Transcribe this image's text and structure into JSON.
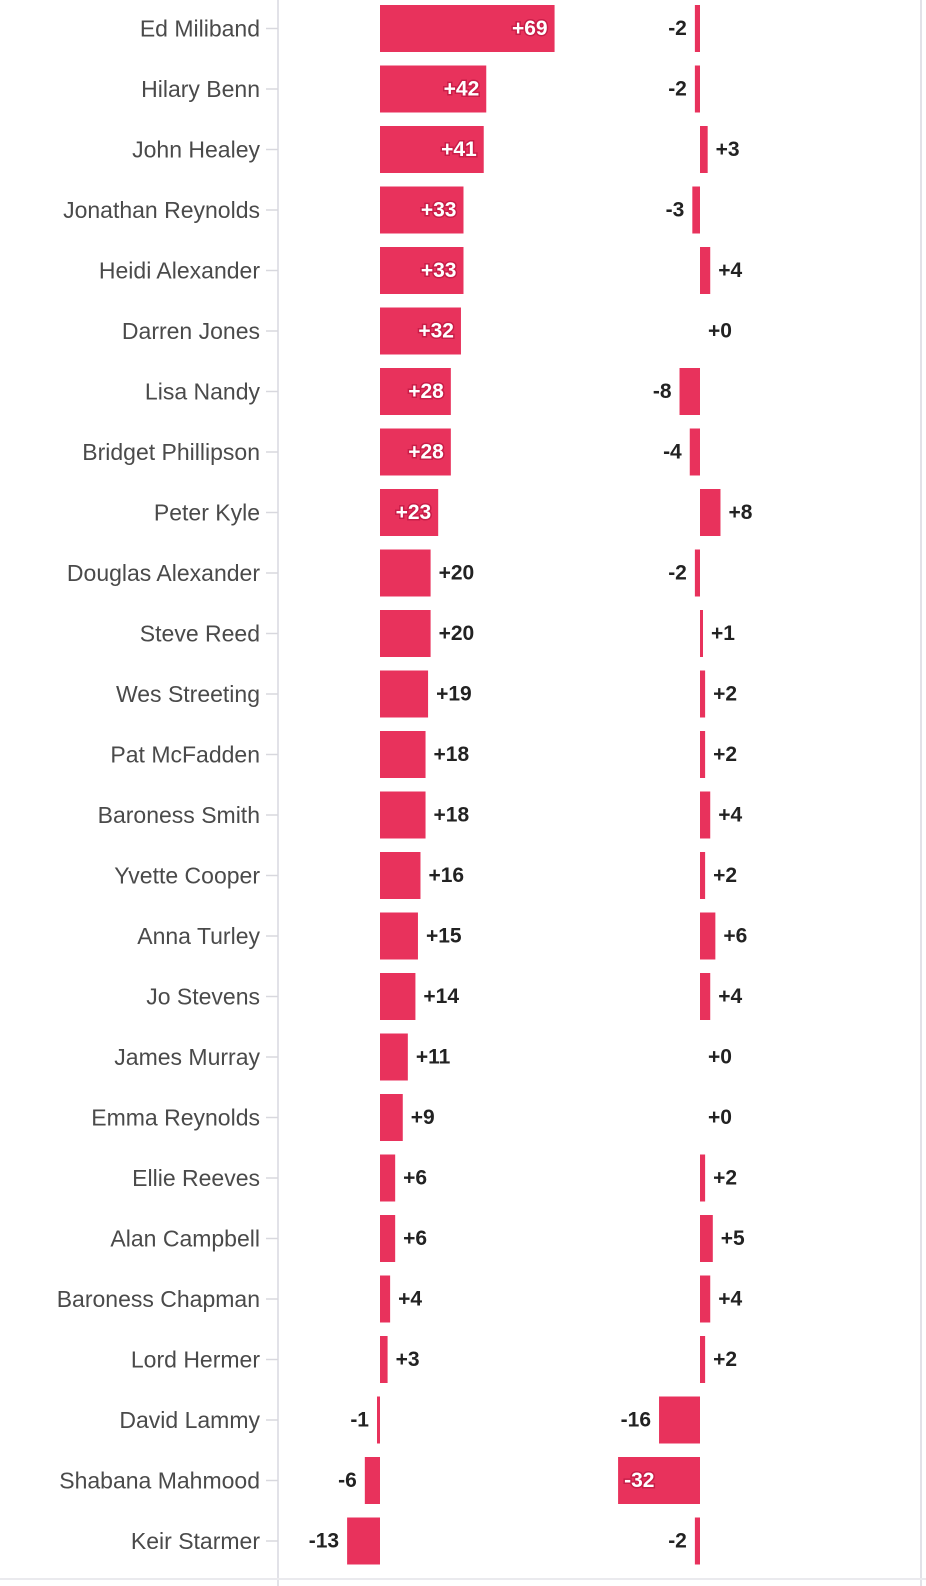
{
  "colors": {
    "bar": "#e8325c",
    "axis": "#e2e2e8",
    "label": "#4a4a4a",
    "value": "#222222"
  },
  "chart_data": {
    "type": "bar",
    "orientation": "horizontal",
    "categories": [
      "Ed Miliband",
      "Hilary Benn",
      "John Healey",
      "Jonathan Reynolds",
      "Heidi Alexander",
      "Darren Jones",
      "Lisa Nandy",
      "Bridget Phillipson",
      "Peter Kyle",
      "Douglas Alexander",
      "Steve Reed",
      "Wes Streeting",
      "Pat McFadden",
      "Baroness Smith",
      "Yvette Cooper",
      "Anna Turley",
      "Jo Stevens",
      "James Murray",
      "Emma Reynolds",
      "Ellie Reeves",
      "Alan Campbell",
      "Baroness Chapman",
      "Lord Hermer",
      "David Lammy",
      "Shabana Mahmood",
      "Keir Starmer"
    ],
    "series": [
      {
        "values": [
          69,
          42,
          41,
          33,
          33,
          32,
          28,
          28,
          23,
          20,
          20,
          19,
          18,
          18,
          16,
          15,
          14,
          11,
          9,
          6,
          6,
          4,
          3,
          -1,
          -6,
          -13
        ],
        "labels": [
          "+69",
          "+42",
          "+41",
          "+33",
          "+33",
          "+32",
          "+28",
          "+28",
          "+23",
          "+20",
          "+20",
          "+19",
          "+18",
          "+18",
          "+16",
          "+15",
          "+14",
          "+11",
          "+9",
          "+6",
          "+6",
          "+4",
          "+3",
          "-1",
          "-6",
          "-13"
        ]
      },
      {
        "values": [
          -2,
          -2,
          3,
          -3,
          4,
          0,
          -8,
          -4,
          8,
          -2,
          1,
          2,
          2,
          4,
          2,
          6,
          4,
          0,
          0,
          2,
          5,
          4,
          2,
          -16,
          -32,
          -2
        ],
        "labels": [
          "-2",
          "-2",
          "+3",
          "-3",
          "+4",
          "+0",
          "-8",
          "-4",
          "+8",
          "-2",
          "+1",
          "+2",
          "+2",
          "+4",
          "+2",
          "+6",
          "+4",
          "+0",
          "+0",
          "+2",
          "+5",
          "+4",
          "+2",
          "-16",
          "-32",
          "-2"
        ]
      }
    ],
    "title": "",
    "xlabel": "",
    "ylabel": "",
    "grid": false
  }
}
